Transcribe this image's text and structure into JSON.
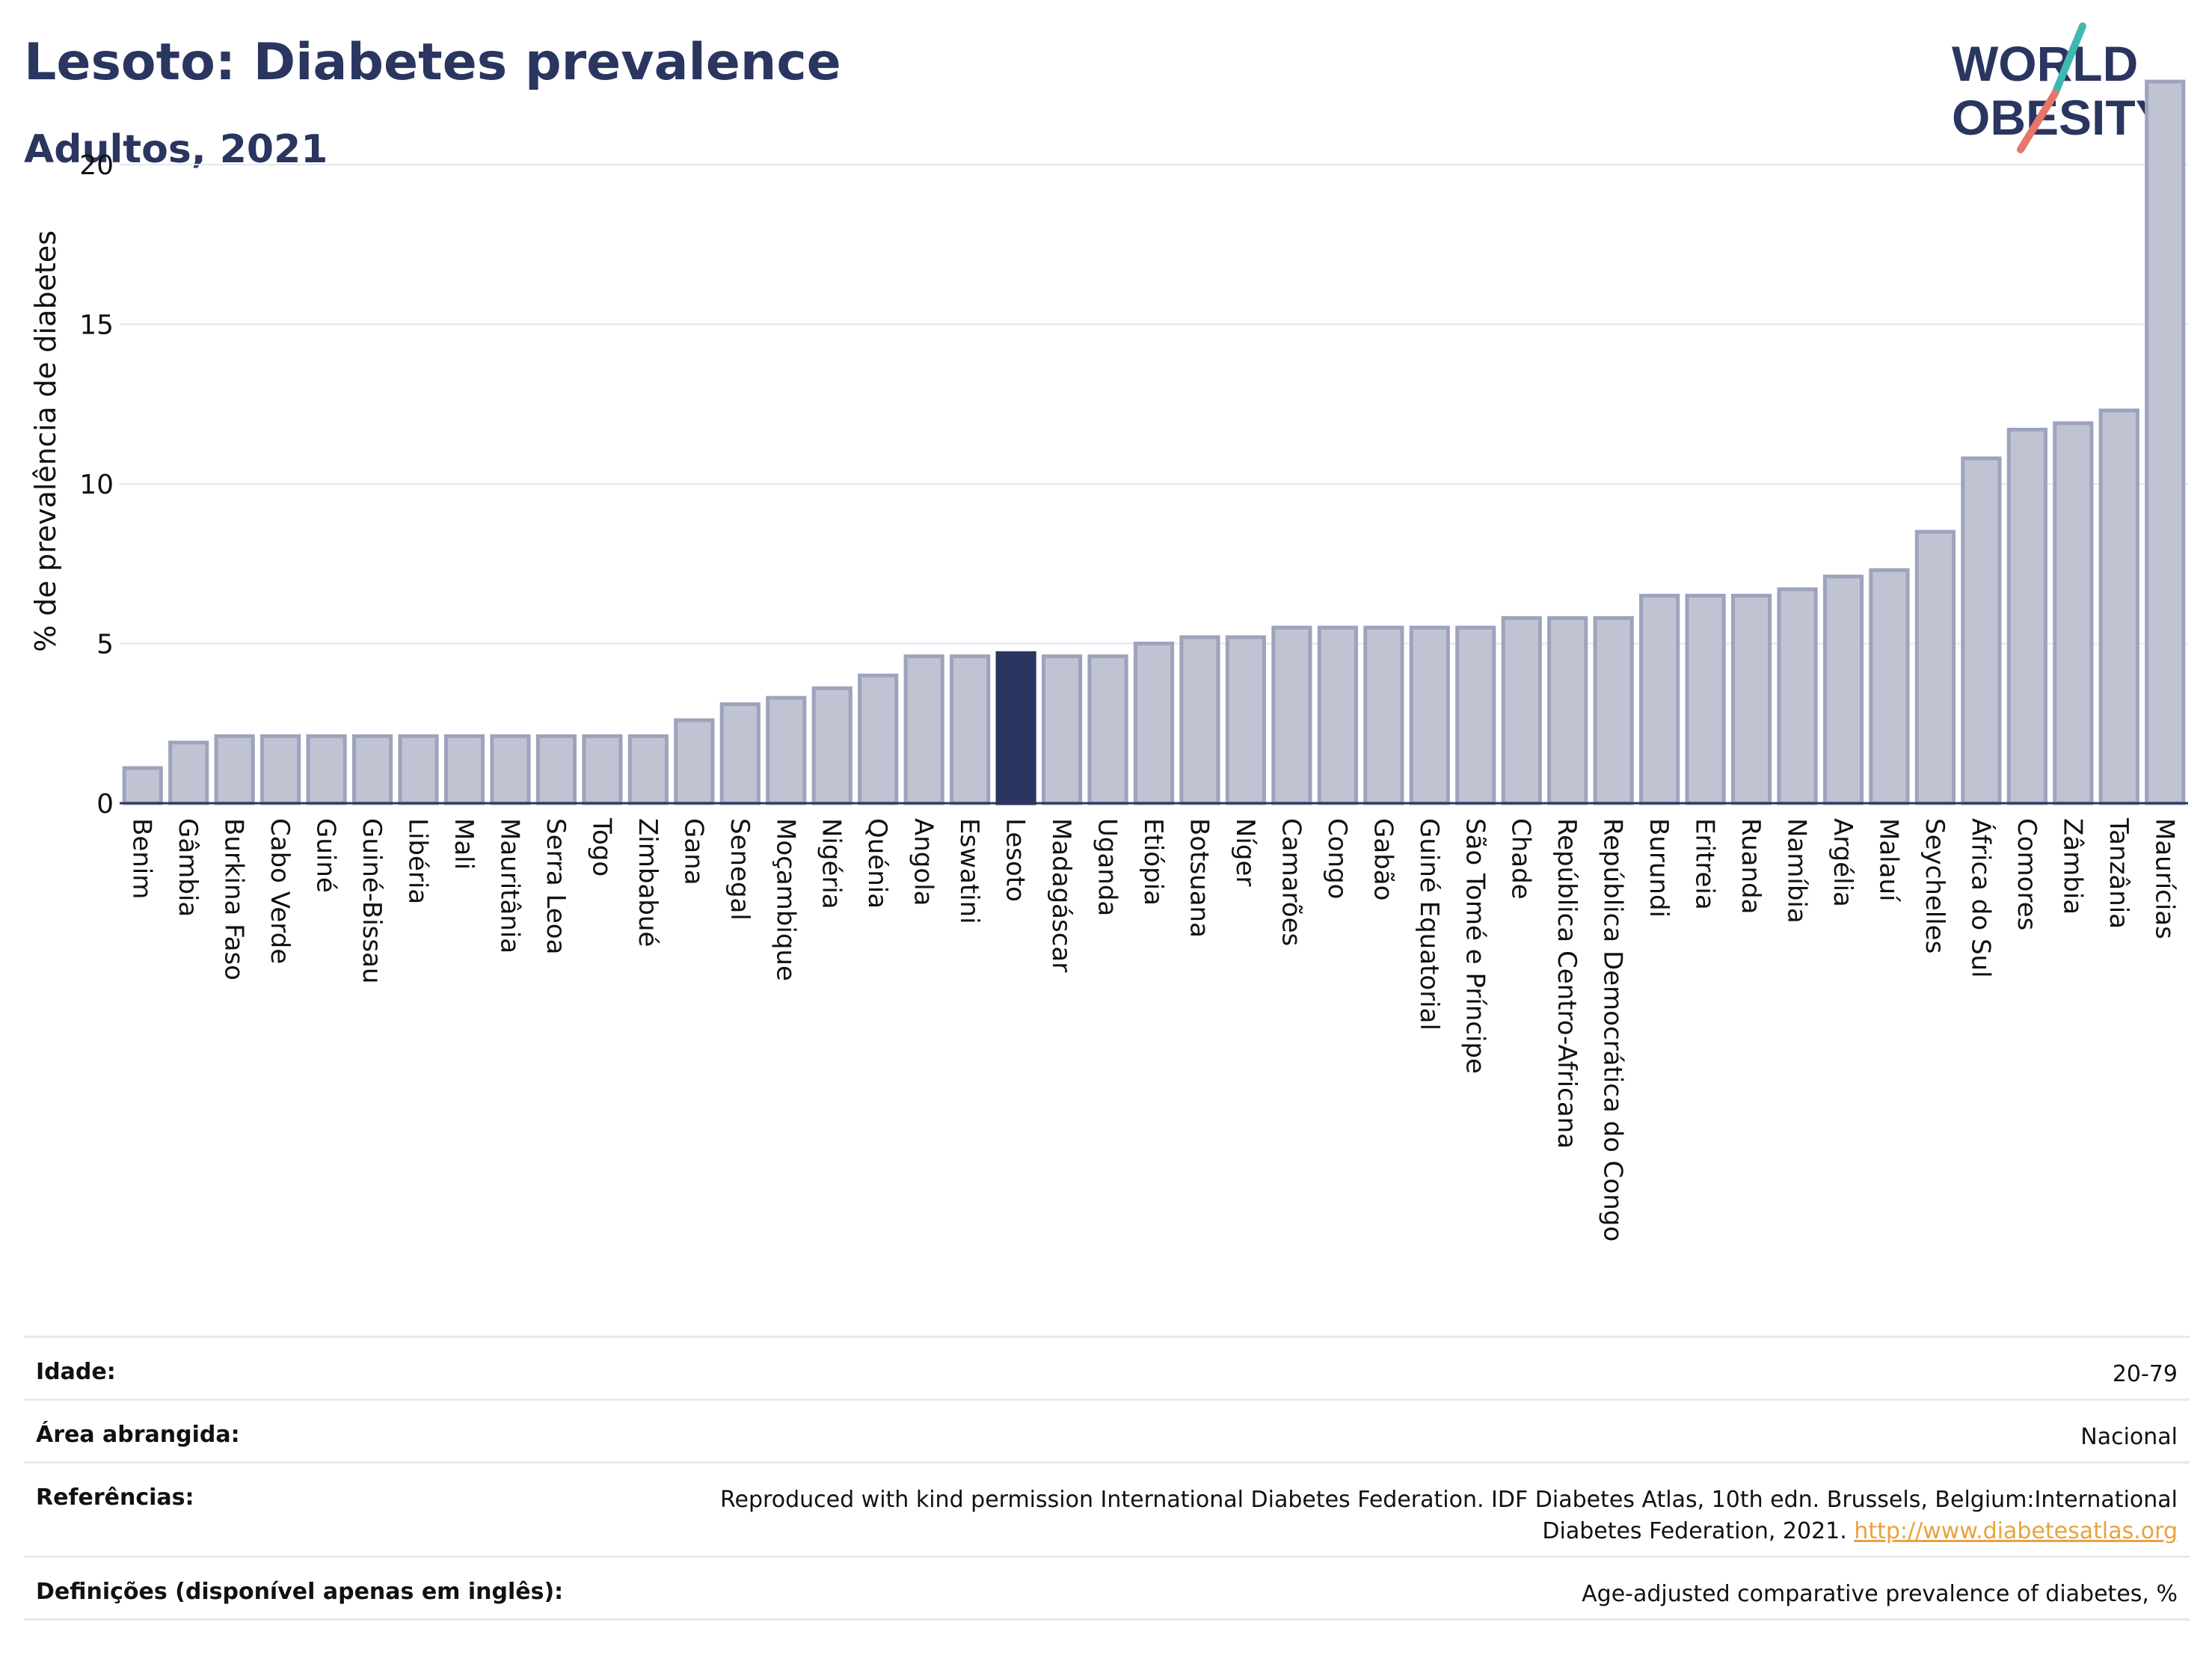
{
  "header": {
    "title": "Lesoto: Diabetes prevalence",
    "subtitle": "Adultos, 2021"
  },
  "logo": {
    "line1": "WORLD",
    "line2": "OBESITY"
  },
  "colors": {
    "highlight": "#2a3560",
    "bar_fill": "#c0c3d2",
    "bar_stroke": "#9ea3bd",
    "grid": "#e4e6ee",
    "text": "#111111",
    "logo_teal": "#3fb8b0",
    "logo_coral": "#e8756a"
  },
  "chart_data": {
    "type": "bar",
    "ylabel": "% de prevalência de diabetes",
    "ylim": [
      0,
      23
    ],
    "yticks": [
      0,
      5,
      10,
      15,
      20
    ],
    "grid": true,
    "highlight": "Lesoto",
    "categories": [
      "Benim",
      "Gâmbia",
      "Burkina Faso",
      "Cabo Verde",
      "Guiné",
      "Guiné-Bissau",
      "Libéria",
      "Mali",
      "Mauritânia",
      "Serra Leoa",
      "Togo",
      "Zimbabué",
      "Gana",
      "Senegal",
      "Moçambique",
      "Nigéria",
      "Quénia",
      "Angola",
      "Eswatini",
      "Lesoto",
      "Madagáscar",
      "Uganda",
      "Etiópia",
      "Botsuana",
      "Níger",
      "Camarões",
      "Congo",
      "Gabão",
      "Guiné Equatorial",
      "São Tomé e Príncipe",
      "Chade",
      "República Centro-Africana",
      "República Democrática do Congo",
      "Burundi",
      "Eritreia",
      "Ruanda",
      "Namíbia",
      "Argélia",
      "Malauí",
      "Seychelles",
      "África do Sul",
      "Comores",
      "Zâmbia",
      "Tanzânia",
      "Maurícias"
    ],
    "values": [
      1.1,
      1.9,
      2.1,
      2.1,
      2.1,
      2.1,
      2.1,
      2.1,
      2.1,
      2.1,
      2.1,
      2.1,
      2.6,
      3.1,
      3.3,
      3.6,
      4.0,
      4.6,
      4.6,
      4.7,
      4.6,
      4.6,
      5.0,
      5.2,
      5.2,
      5.5,
      5.5,
      5.5,
      5.5,
      5.5,
      5.8,
      5.8,
      5.8,
      6.5,
      6.5,
      6.5,
      6.7,
      7.1,
      7.3,
      8.5,
      10.8,
      11.7,
      11.9,
      12.3,
      22.6
    ]
  },
  "meta": [
    {
      "label": "Idade:",
      "value": "20-79"
    },
    {
      "label": "Área abrangida:",
      "value": "Nacional"
    },
    {
      "label": "Referências:",
      "value_line1": "Reproduced with kind permission International Diabetes Federation.  IDF Diabetes Atlas, 10th edn. Brussels, Belgium:International",
      "value_line2": "Diabetes Federation, 2021. ",
      "link": "http://www.diabetesatlas.org"
    },
    {
      "label": "Definições (disponível apenas em inglês):",
      "value": "Age-adjusted comparative prevalence of diabetes, %"
    }
  ]
}
